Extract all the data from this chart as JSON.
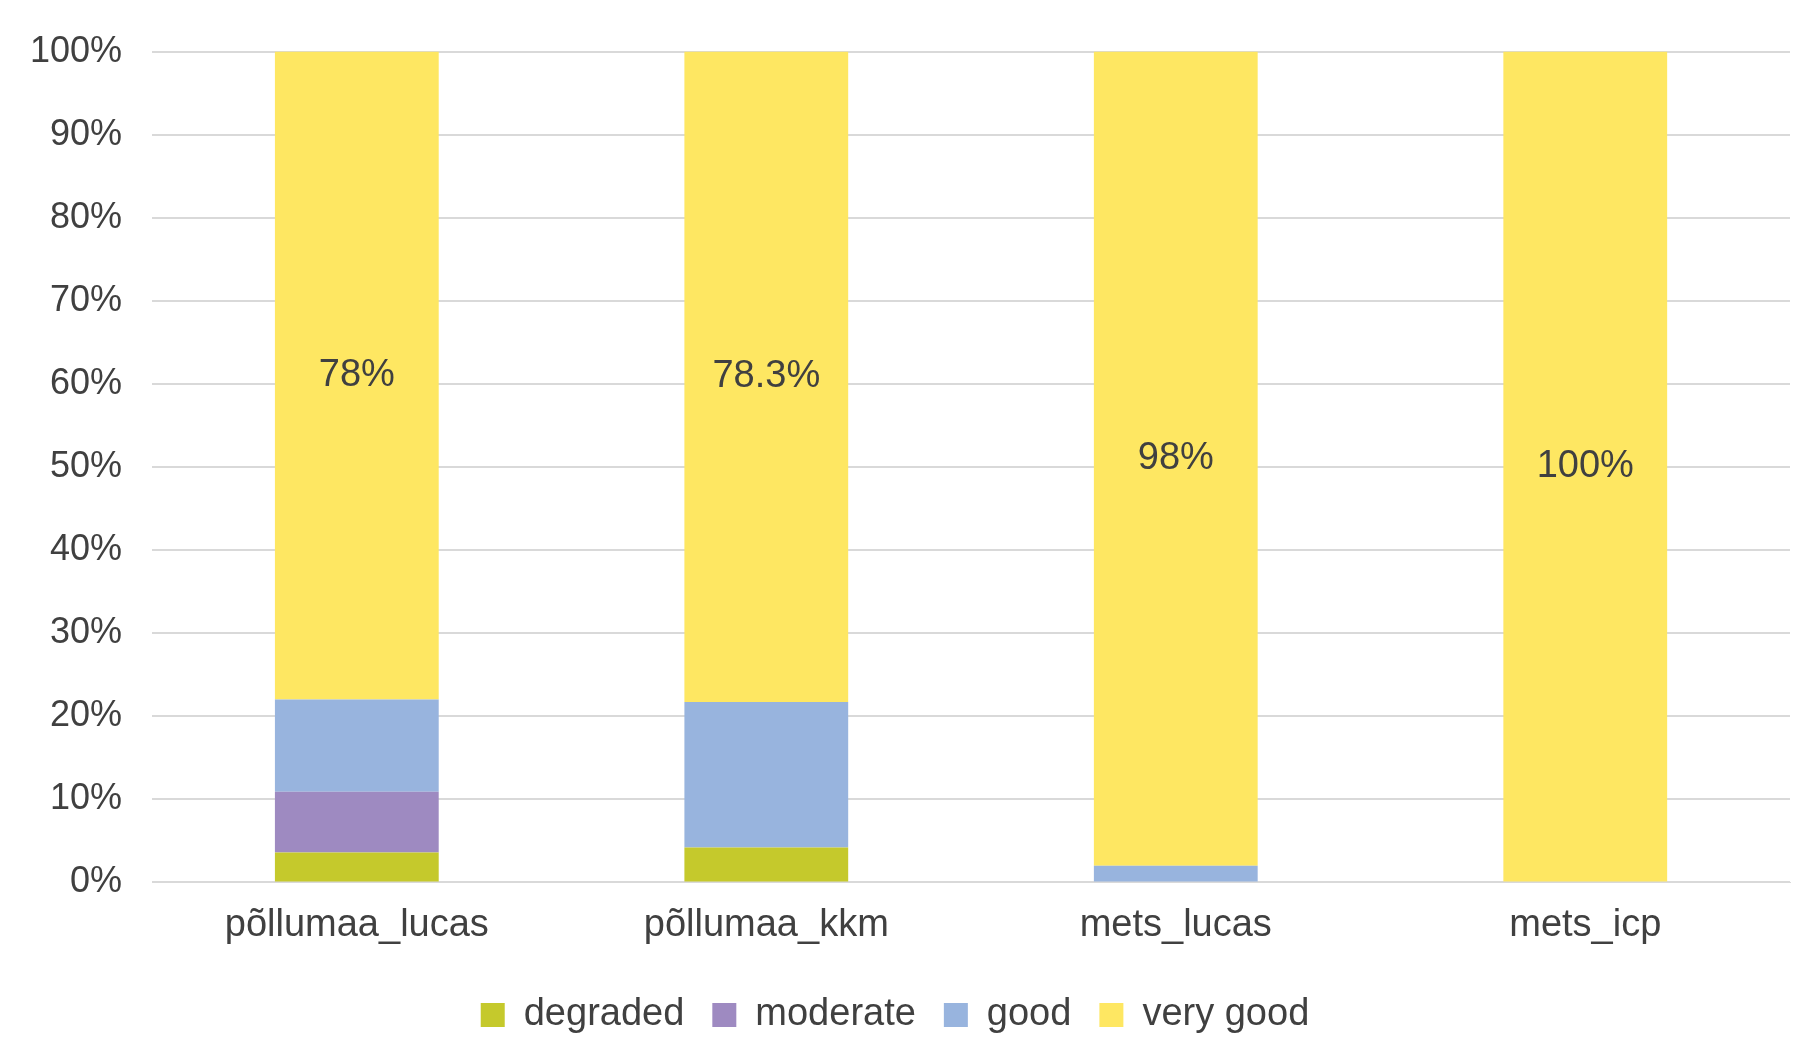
{
  "chart_data": {
    "type": "bar",
    "stacked": true,
    "categories": [
      "põllumaa_lucas",
      "põllumaa_kkm",
      "mets_lucas",
      "mets_icp"
    ],
    "series": [
      {
        "name": "degraded",
        "color": "#c5c92c",
        "values": [
          3.6,
          4.2,
          0,
          0
        ]
      },
      {
        "name": "moderate",
        "color": "#9e8ac1",
        "values": [
          7.3,
          0,
          0,
          0
        ]
      },
      {
        "name": "good",
        "color": "#98b4de",
        "values": [
          11.1,
          17.5,
          2,
          0
        ]
      },
      {
        "name": "very good",
        "color": "#fee762",
        "values": [
          78,
          78.3,
          98,
          100
        ],
        "value_labels": [
          "78%",
          "78.3%",
          "98%",
          "100%"
        ]
      }
    ],
    "ylim": [
      0,
      100
    ],
    "yticks": [
      {
        "value": 0,
        "label": "0%"
      },
      {
        "value": 10,
        "label": "10%"
      },
      {
        "value": 20,
        "label": "20%"
      },
      {
        "value": 30,
        "label": "30%"
      },
      {
        "value": 40,
        "label": "40%"
      },
      {
        "value": 50,
        "label": "50%"
      },
      {
        "value": 60,
        "label": "60%"
      },
      {
        "value": 70,
        "label": "70%"
      },
      {
        "value": 80,
        "label": "80%"
      },
      {
        "value": 90,
        "label": "90%"
      },
      {
        "value": 100,
        "label": "100%"
      }
    ],
    "grid": "y",
    "legend": "bottom"
  }
}
